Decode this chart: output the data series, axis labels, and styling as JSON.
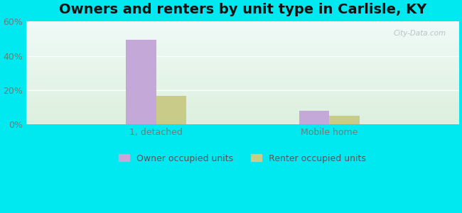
{
  "title": "Owners and renters by unit type in Carlisle, KY",
  "categories": [
    "1, detached",
    "Mobile home"
  ],
  "owner_values": [
    49.5,
    8.0
  ],
  "renter_values": [
    16.5,
    5.0
  ],
  "owner_color": "#c4a8d8",
  "renter_color": "#c8cc88",
  "ylim": [
    0,
    60
  ],
  "yticks": [
    0,
    20,
    40,
    60
  ],
  "yticklabels": [
    "0%",
    "20%",
    "40%",
    "60%"
  ],
  "background_cyan": "#00e8f0",
  "watermark": "City-Data.com",
  "title_fontsize": 14,
  "tick_fontsize": 9,
  "legend_fontsize": 9,
  "bar_width": 0.35,
  "group_centers": [
    1.0,
    3.0
  ]
}
